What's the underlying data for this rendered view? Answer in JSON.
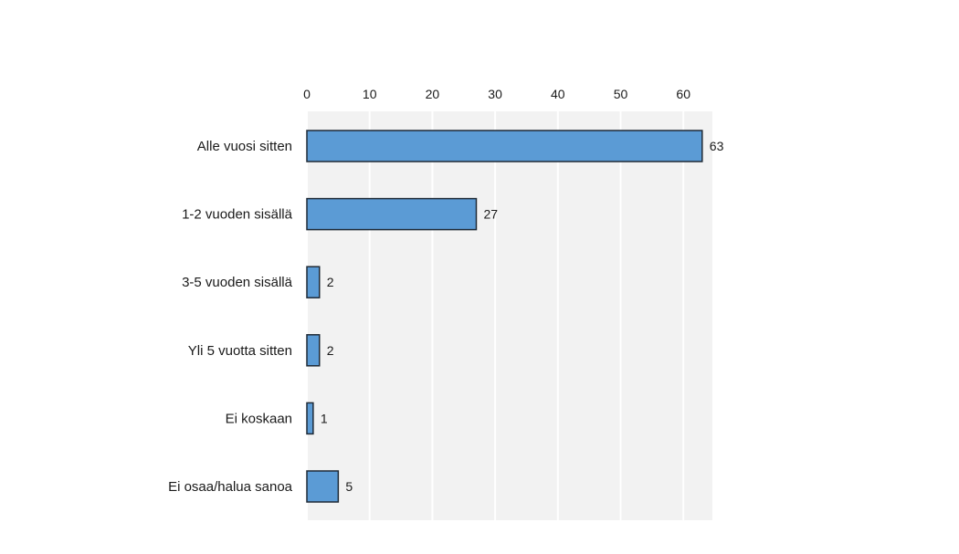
{
  "chart_data": {
    "type": "bar",
    "orientation": "horizontal",
    "categories": [
      "Alle vuosi sitten",
      "1-2 vuoden sisällä",
      "3-5 vuoden sisällä",
      "Yli 5 vuotta sitten",
      "Ei koskaan",
      "Ei osaa/halua sanoa"
    ],
    "values": [
      63,
      27,
      2,
      2,
      1,
      5
    ],
    "title": "",
    "xlabel": "",
    "ylabel": "",
    "xlim": [
      0,
      65
    ],
    "xticks": [
      0,
      10,
      20,
      30,
      40,
      50,
      60
    ],
    "tick_position": "top",
    "grid": true,
    "data_labels": true,
    "legend": "none",
    "colors": {
      "bar_fill": "#5b9bd5",
      "bar_stroke": "#1f2a36",
      "plot_background": "#f2f2f2",
      "gridline": "#ffffff"
    }
  }
}
